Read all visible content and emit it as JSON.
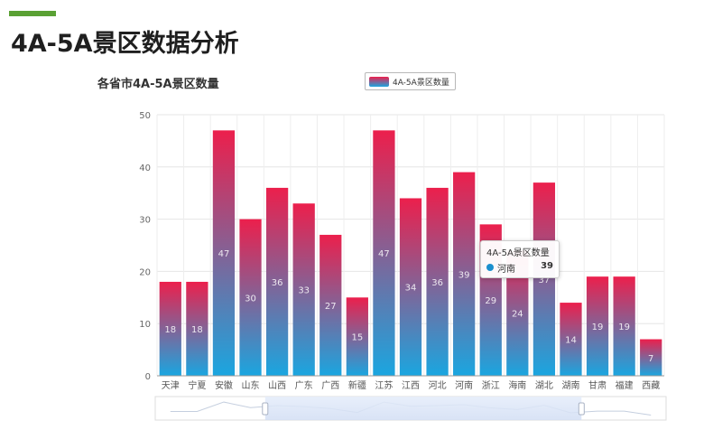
{
  "page": {
    "title": "4A-5A景区数据分析"
  },
  "colors": {
    "accent": "#5aa134",
    "bar_top": "#ec1f4c",
    "bar_bottom": "#1aa6e0",
    "tooltip_dot": "#1a8fce"
  },
  "tooltip": {
    "title": "4A-5A景区数量",
    "name": "河南",
    "value": "39"
  },
  "chart_data": {
    "type": "bar",
    "title": "各省市4A-5A景区数量",
    "legend": {
      "label": "4A-5A景区数量",
      "position": "top"
    },
    "categories": [
      "天津",
      "宁夏",
      "安徽",
      "山东",
      "山西",
      "广东",
      "广西",
      "新疆",
      "江苏",
      "江西",
      "河北",
      "河南",
      "浙江",
      "海南",
      "湖北",
      "湖南",
      "甘肃",
      "福建",
      "西藏"
    ],
    "series": [
      {
        "name": "4A-5A景区数量",
        "values": [
          18,
          18,
          47,
          30,
          36,
          33,
          27,
          15,
          47,
          34,
          36,
          39,
          29,
          24,
          37,
          14,
          19,
          19,
          7
        ]
      }
    ],
    "ylim": [
      0,
      50
    ],
    "yticks": [
      "0",
      "10",
      "20",
      "30",
      "40",
      "50"
    ],
    "grid": true,
    "data_labels": "inside",
    "data_zoom": true
  }
}
